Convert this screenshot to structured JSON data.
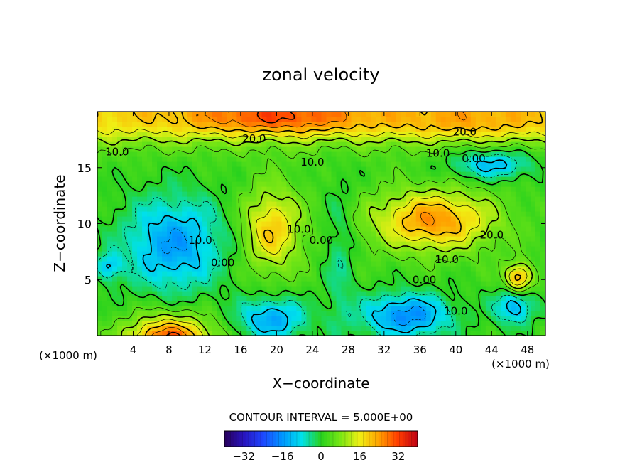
{
  "chart_data": {
    "type": "heatmap",
    "title": "zonal velocity",
    "xlabel": "X−coordinate",
    "ylabel": "Z−coordinate",
    "x_unit_left": "(×1000 m)",
    "x_unit_right": "(×1000 m)",
    "xlim": [
      0,
      50
    ],
    "ylim": [
      0,
      20
    ],
    "x_ticks": [
      4,
      8,
      12,
      16,
      20,
      24,
      28,
      32,
      36,
      40,
      44,
      48
    ],
    "y_ticks": [
      5,
      10,
      15
    ],
    "contour_interval_label": "CONTOUR INTERVAL = 5.000E+00",
    "colorbar": {
      "range": [
        -40,
        40
      ],
      "ticks": [
        -32,
        -16,
        0,
        16,
        32
      ]
    },
    "contour_labels": [
      {
        "text": "20.0",
        "x": 17.5,
        "z": 17.6
      },
      {
        "text": "20.0",
        "x": 41.0,
        "z": 18.2
      },
      {
        "text": "10.0",
        "x": 2.2,
        "z": 16.4
      },
      {
        "text": "10.0",
        "x": 24.0,
        "z": 15.5
      },
      {
        "text": "10.0",
        "x": 38.0,
        "z": 16.3
      },
      {
        "text": "0.00",
        "x": 42.0,
        "z": 15.8
      },
      {
        "text": "10.0",
        "x": 11.5,
        "z": 8.5
      },
      {
        "text": "0.00",
        "x": 14.0,
        "z": 6.5
      },
      {
        "text": "10.0",
        "x": 22.5,
        "z": 9.5
      },
      {
        "text": "0.00",
        "x": 25.0,
        "z": 8.5
      },
      {
        "text": "20.0",
        "x": 44.0,
        "z": 9.0
      },
      {
        "text": "10.0",
        "x": 39.0,
        "z": 6.8
      },
      {
        "text": "0.00",
        "x": 36.5,
        "z": 5.0
      },
      {
        "text": "10.0",
        "x": 40.0,
        "z": 2.2
      }
    ],
    "features": [
      {
        "kind": "max",
        "x": 8,
        "z": 0.2,
        "value": 38
      },
      {
        "kind": "max",
        "x": 20,
        "z": 18.8,
        "value": 32
      },
      {
        "kind": "max",
        "x": 19.5,
        "z": 9.5,
        "value": 22
      },
      {
        "kind": "max",
        "x": 37,
        "z": 10.5,
        "value": 25
      },
      {
        "kind": "max",
        "x": 47,
        "z": 5.2,
        "value": 30
      },
      {
        "kind": "min",
        "x": 8.5,
        "z": 8,
        "value": -12
      },
      {
        "kind": "min",
        "x": 19.5,
        "z": 1.5,
        "value": -12
      },
      {
        "kind": "min",
        "x": 34.5,
        "z": 2,
        "value": -15
      },
      {
        "kind": "min",
        "x": 46.5,
        "z": 2.5,
        "value": -12
      }
    ]
  }
}
